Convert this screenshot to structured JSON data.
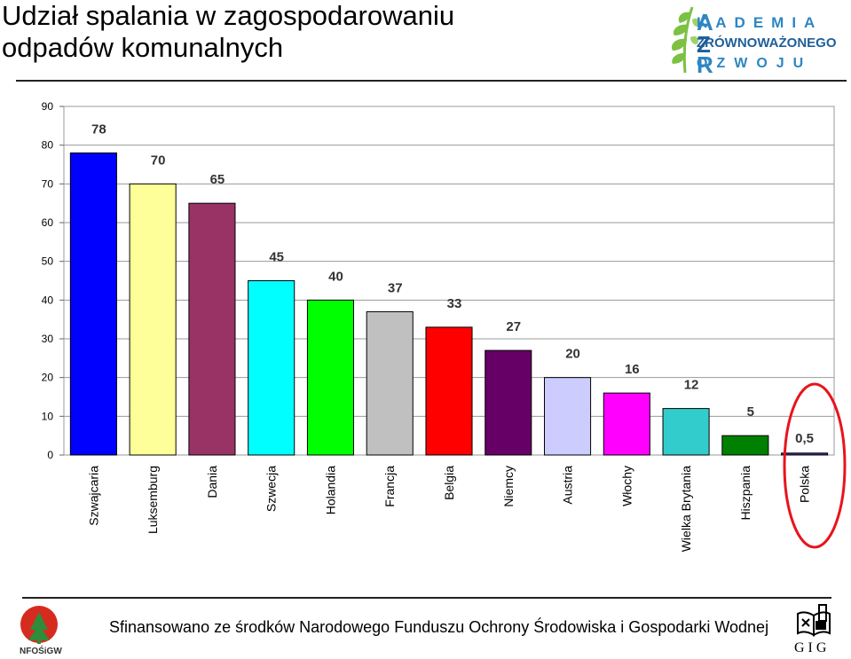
{
  "title_line1": "Udział spalania w zagospodarowaniu",
  "title_line2": "odpadów komunalnych",
  "logo": {
    "line1": "KADEMIA",
    "line2": "ZRÓWNOWAŻONEGO",
    "line3": "OZWOJU",
    "letter_a": "A",
    "letter_z": "Z",
    "letter_r": "R",
    "colors": {
      "blue": "#2e86c1",
      "green": "#7cc142"
    }
  },
  "footer": {
    "text": "Sfinansowano ze środków Narodowego Funduszu Ochrony Środowiska i Gospodarki Wodnej",
    "left_logo_label": "NFOŚiGW",
    "right_logo_label": "GIG"
  },
  "chart_data": {
    "type": "bar",
    "categories": [
      "Szwajcaria",
      "Luksemburg",
      "Dania",
      "Szwecja",
      "Holandia",
      "Francja",
      "Belgia",
      "Niemcy",
      "Austria",
      "Włochy",
      "Wielka Brytania",
      "Hiszpania",
      "Polska"
    ],
    "values": [
      78,
      70,
      65,
      45,
      40,
      37,
      33,
      27,
      20,
      16,
      12,
      5,
      0.5
    ],
    "value_labels": [
      "78",
      "70",
      "65",
      "45",
      "40",
      "37",
      "33",
      "27",
      "20",
      "16",
      "12",
      "5",
      "0,5"
    ],
    "colors": [
      "#0000ff",
      "#ffff99",
      "#993366",
      "#00ffff",
      "#00ff00",
      "#c0c0c0",
      "#ff0000",
      "#660066",
      "#ccccff",
      "#ff00ff",
      "#33cccc",
      "#008000",
      "#333399"
    ],
    "ylim": [
      0,
      90
    ],
    "yticks": [
      0,
      10,
      20,
      30,
      40,
      50,
      60,
      70,
      80,
      90
    ],
    "grid": true,
    "highlight_category": "Polska",
    "highlight_color": "#e8141c",
    "title": "",
    "xlabel": "",
    "ylabel": ""
  }
}
